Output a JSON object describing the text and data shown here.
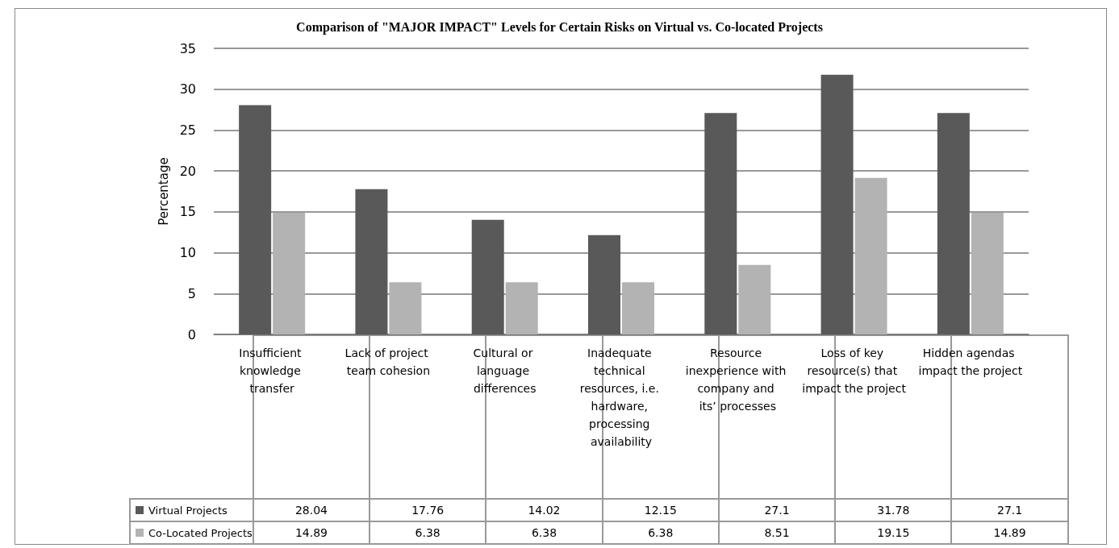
{
  "chart_data": {
    "type": "bar",
    "title": "Comparison of \"MAJOR IMPACT\" Levels for Certain Risks on Virtual vs. Co-located Projects",
    "ylabel": "Percentage",
    "categories": [
      "Insufficient knowledge transfer",
      "Lack of project team cohesion",
      "Cultural or language differences",
      "Inadequate technical resources, i.e. hardware, processing availability",
      "Resource inexperience with company and its’ processes",
      "Loss of key resource(s) that impact the project",
      "Hidden agendas impact the project"
    ],
    "series": [
      {
        "name": "Virtual Projects",
        "color": "#595959",
        "values": [
          28.04,
          17.76,
          14.02,
          12.15,
          27.1,
          31.78,
          27.1
        ]
      },
      {
        "name": "Co-Located Projects",
        "color": "#b3b3b3",
        "values": [
          14.89,
          6.38,
          6.38,
          6.38,
          8.51,
          19.15,
          14.89
        ]
      }
    ],
    "ylim": [
      0,
      35
    ],
    "yticks": [
      0,
      5,
      10,
      15,
      20,
      25,
      30,
      35
    ],
    "grid": true,
    "legend": "bottom left",
    "data_labels": true
  }
}
